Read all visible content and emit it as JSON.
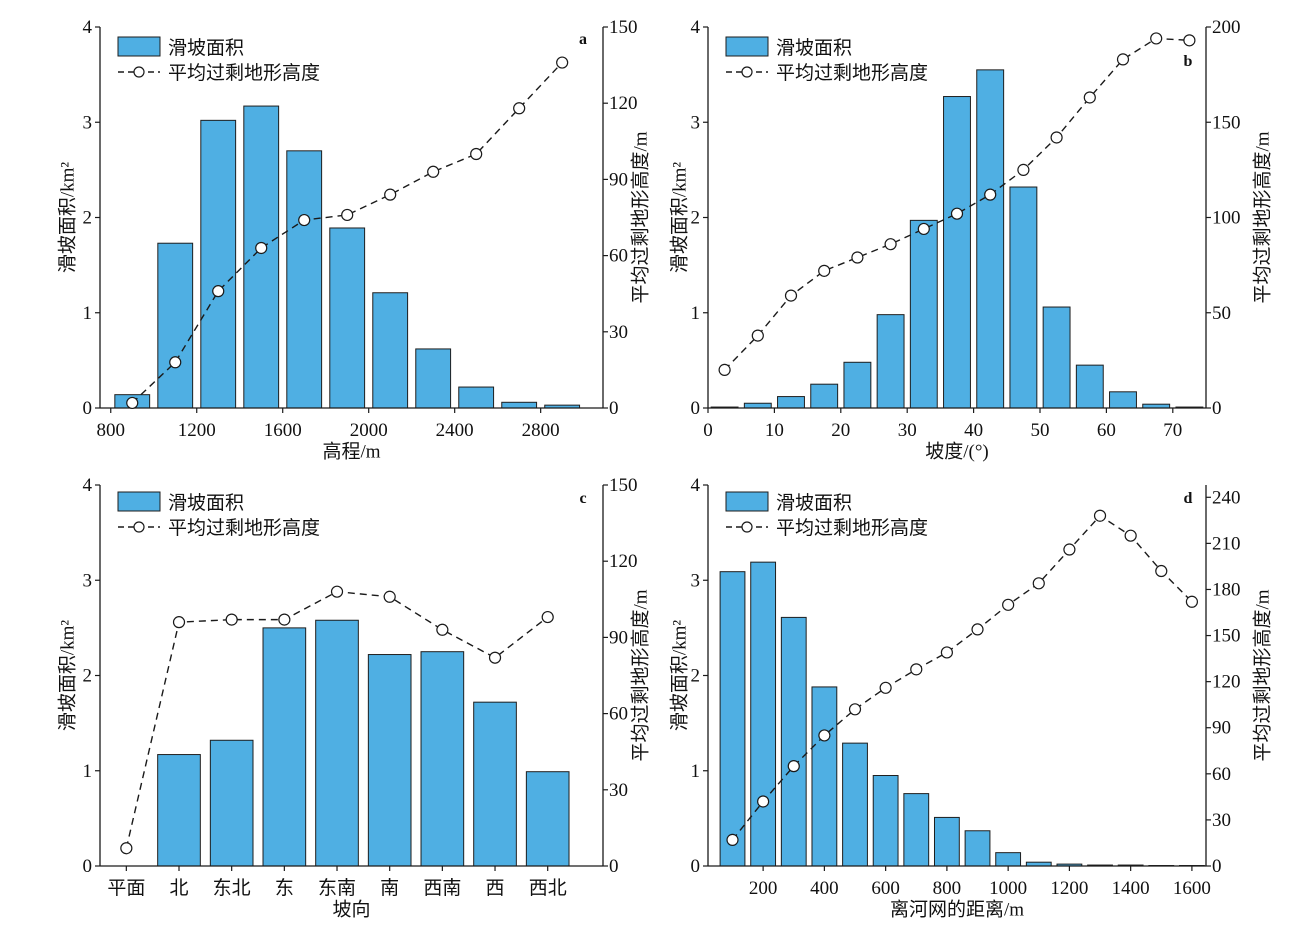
{
  "colors": {
    "bar_fill": "#4fafe3",
    "bar_edge": "#1e1e1e",
    "line": "#1a1a1a",
    "axis": "#1a1a1a",
    "marker_fill": "#ffffff"
  },
  "chart_data": [
    {
      "panel_label": "a",
      "type": "bar",
      "xlabel": "高程/m",
      "ylabel": "滑坡面积/km²",
      "y2label": "平均过剩地形高度/m",
      "x": [
        900,
        1100,
        1300,
        1500,
        1700,
        1900,
        2100,
        2300,
        2500,
        2700,
        2900
      ],
      "xlim": [
        750,
        3090
      ],
      "xticks": [
        800,
        1200,
        1600,
        2000,
        2400,
        2800
      ],
      "ylim": [
        0,
        4
      ],
      "yticks": [
        0,
        1,
        2,
        3,
        4
      ],
      "y2lim": [
        0,
        150
      ],
      "y2ticks": [
        0,
        30,
        60,
        90,
        120,
        150
      ],
      "legend": "top-left",
      "series": [
        {
          "name": "滑坡面积",
          "type": "bar",
          "axis": "left",
          "values": [
            0.14,
            1.73,
            3.02,
            3.17,
            2.7,
            1.89,
            1.21,
            0.62,
            0.22,
            0.06,
            0.03
          ]
        },
        {
          "name": "平均过剩地形高度",
          "type": "line",
          "axis": "right",
          "values": [
            2,
            18,
            46,
            63,
            74,
            76,
            84,
            93,
            100,
            118,
            136
          ]
        }
      ]
    },
    {
      "panel_label": "b",
      "type": "bar",
      "xlabel": "坡度/(°)",
      "ylabel": "滑坡面积/km²",
      "y2label": "平均过剩地形高度/m",
      "x": [
        2.5,
        7.5,
        12.5,
        17.5,
        22.5,
        27.5,
        32.5,
        37.5,
        42.5,
        47.5,
        52.5,
        57.5,
        62.5,
        67.5,
        72.5
      ],
      "xlim": [
        0,
        75
      ],
      "xticks": [
        0,
        10,
        20,
        30,
        40,
        50,
        60,
        70
      ],
      "ylim": [
        0,
        4
      ],
      "yticks": [
        0,
        1,
        2,
        3,
        4
      ],
      "y2lim": [
        0,
        200
      ],
      "y2ticks": [
        0,
        50,
        100,
        150,
        200
      ],
      "legend": "top-left",
      "series": [
        {
          "name": "滑坡面积",
          "type": "bar",
          "axis": "left",
          "values": [
            0.01,
            0.05,
            0.12,
            0.25,
            0.48,
            0.98,
            1.97,
            3.27,
            3.55,
            2.32,
            1.06,
            0.45,
            0.17,
            0.04,
            0.01
          ]
        },
        {
          "name": "平均过剩地形高度",
          "type": "line",
          "axis": "right",
          "values": [
            20,
            38,
            59,
            72,
            79,
            86,
            94,
            102,
            112,
            125,
            142,
            163,
            183,
            194,
            193
          ]
        }
      ]
    },
    {
      "panel_label": "c",
      "type": "bar",
      "xlabel": "坡向",
      "ylabel": "滑坡面积/km²",
      "y2label": "平均过剩地形高度/m",
      "categories": [
        "平面",
        "北",
        "东北",
        "东",
        "东南",
        "南",
        "西南",
        "西",
        "西北"
      ],
      "xlim": [
        -0.5,
        9.05
      ],
      "ylim": [
        0,
        4
      ],
      "yticks": [
        0,
        1,
        2,
        3,
        4
      ],
      "y2lim": [
        0,
        150
      ],
      "y2ticks": [
        0,
        30,
        60,
        90,
        120,
        150
      ],
      "legend": "top-left",
      "series": [
        {
          "name": "滑坡面积",
          "type": "bar",
          "axis": "left",
          "values": [
            0,
            1.17,
            1.32,
            2.5,
            2.58,
            2.22,
            2.25,
            1.72,
            0.99
          ]
        },
        {
          "name": "平均过剩地形高度",
          "type": "line",
          "axis": "right",
          "values": [
            7,
            96,
            97,
            97,
            108,
            106,
            93,
            82,
            98
          ]
        }
      ]
    },
    {
      "panel_label": "d",
      "type": "bar",
      "xlabel": "离河网的距离/m",
      "ylabel": "滑坡面积/km²",
      "y2label": "平均过剩地形高度/m",
      "x": [
        100,
        200,
        300,
        400,
        500,
        600,
        700,
        800,
        900,
        1000,
        1100,
        1200,
        1300,
        1400,
        1500,
        1600
      ],
      "xlim": [
        20,
        1646
      ],
      "xticks": [
        200,
        400,
        600,
        800,
        1000,
        1200,
        1400,
        1600
      ],
      "ylim": [
        0,
        4
      ],
      "yticks": [
        0,
        1,
        2,
        3,
        4
      ],
      "y2lim": [
        0,
        248
      ],
      "y2ticks": [
        0,
        30,
        60,
        90,
        120,
        150,
        180,
        210,
        240
      ],
      "legend": "top-left",
      "series": [
        {
          "name": "滑坡面积",
          "type": "bar",
          "axis": "left",
          "values": [
            3.09,
            3.19,
            2.61,
            1.88,
            1.29,
            0.95,
            0.76,
            0.51,
            0.37,
            0.14,
            0.04,
            0.02,
            0.01,
            0.01,
            0.005,
            0.005
          ]
        },
        {
          "name": "平均过剩地形高度",
          "type": "line",
          "axis": "right",
          "values": [
            17,
            42,
            65,
            85,
            102,
            116,
            128,
            139,
            154,
            170,
            184,
            206,
            228,
            215,
            192,
            172
          ]
        }
      ]
    }
  ]
}
